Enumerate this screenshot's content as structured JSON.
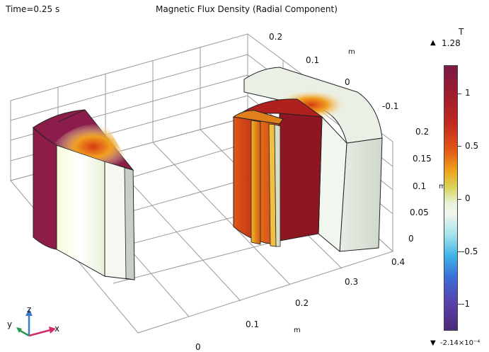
{
  "header": {
    "time_label": "Time=0.25 s",
    "plot_title": "Magnetic Flux Density (Radial Component)"
  },
  "axes": {
    "y_ticks": [
      "0.2",
      "0.1",
      "0",
      "-0.1"
    ],
    "y_unit": "m",
    "z_ticks": [
      "0.2",
      "0.15",
      "0.1",
      "0.05",
      "0"
    ],
    "z_unit": "m",
    "x_ticks": [
      "0.4",
      "0.3",
      "0.2",
      "0.1",
      "0"
    ],
    "x_unit": "m"
  },
  "triad": {
    "x": "x",
    "y": "y",
    "z": "z"
  },
  "colorbar": {
    "unit": "T",
    "max_label": "1.28",
    "min_label": "-2.14×10⁻⁴",
    "ticks": [
      "1",
      "0.5",
      "0",
      "-0.5",
      "-1"
    ]
  },
  "colors": {
    "dark_red": "#8b1424",
    "red": "#c0241e",
    "orange": "#e06018",
    "pale": "#eef4e6",
    "magenta": "#8e1d4a"
  }
}
